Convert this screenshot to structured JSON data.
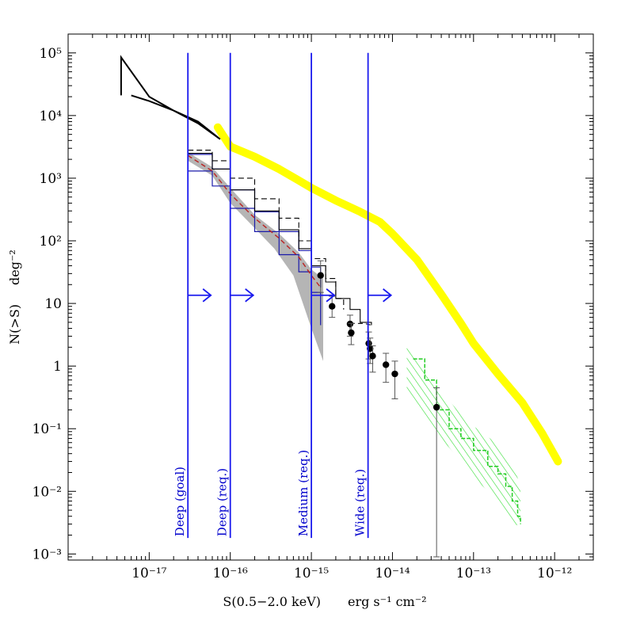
{
  "chart_data": {
    "type": "line",
    "xlabel": {
      "main": "S(0.5−2.0 keV)",
      "units": "erg s⁻¹ cm⁻²"
    },
    "ylabel": {
      "main": "N(>S)",
      "units": "deg⁻²"
    },
    "x_scale": "log",
    "y_scale": "log",
    "xlim": [
      1e-18,
      3e-12
    ],
    "ylim": [
      0.0008,
      200000
    ],
    "grid": false,
    "x_ticks": [
      {
        "value": 1e-17,
        "label": "10⁻¹⁷"
      },
      {
        "value": 1e-16,
        "label": "10⁻¹⁶"
      },
      {
        "value": 1e-15,
        "label": "10⁻¹⁵"
      },
      {
        "value": 1e-14,
        "label": "10⁻¹⁴"
      },
      {
        "value": 1e-13,
        "label": "10⁻¹³"
      },
      {
        "value": 1e-12,
        "label": "10⁻¹²"
      }
    ],
    "y_ticks": [
      {
        "value": 100000,
        "label": "10⁵"
      },
      {
        "value": 10000,
        "label": "10⁴"
      },
      {
        "value": 1000,
        "label": "10³"
      },
      {
        "value": 100,
        "label": "10²"
      },
      {
        "value": 10,
        "label": "10"
      },
      {
        "value": 1,
        "label": "1"
      },
      {
        "value": 0.1,
        "label": "10⁻¹"
      },
      {
        "value": 0.01,
        "label": "10⁻²"
      },
      {
        "value": 0.001,
        "label": "10⁻³"
      }
    ],
    "survey_limits": [
      {
        "label": "Deep (goal)",
        "x": 3e-17
      },
      {
        "label": "Deep (req.)",
        "x": 1e-16
      },
      {
        "label": "Medium (req.)",
        "x": 1e-15
      },
      {
        "label": "Wide (req.)",
        "x": 5e-15
      }
    ],
    "series": [
      {
        "style": "yellow-band",
        "x": [
          7e-17,
          1e-16,
          2e-16,
          4e-16,
          7e-16,
          1e-15,
          2e-15,
          4e-15,
          7e-15,
          1e-14,
          2e-14,
          4e-14,
          7e-14,
          1e-13,
          2e-13,
          4e-13,
          7e-13,
          1.1e-12
        ],
        "y": [
          6500,
          3200,
          2200,
          1400,
          920,
          700,
          440,
          290,
          200,
          130,
          50,
          14,
          4.8,
          2.3,
          0.75,
          0.26,
          0.085,
          0.03
        ]
      },
      {
        "style": "black-wedge-upper",
        "x": [
          4.5e-18,
          1e-17,
          2e-17,
          4e-17,
          7.5e-17
        ],
        "y": [
          85000,
          20000,
          12000,
          7500,
          4200
        ]
      },
      {
        "style": "black-wedge-lower",
        "x": [
          4.5e-18,
          6e-18,
          1e-17,
          2e-17,
          4e-17,
          7.5e-17
        ],
        "y": [
          21000,
          21000,
          17000,
          12000,
          8000,
          4200
        ]
      },
      {
        "style": "gray-band-upper",
        "x": [
          3e-17,
          6e-17,
          1e-16,
          2e-16,
          4e-16,
          7e-16,
          1e-15,
          1.4e-15
        ],
        "y": [
          2600,
          1500,
          700,
          260,
          130,
          65,
          35,
          25
        ]
      },
      {
        "style": "gray-band-lower",
        "x": [
          3e-17,
          6e-17,
          1e-16,
          2e-16,
          3.5e-16,
          6e-16,
          1e-15,
          1.4e-15
        ],
        "y": [
          1900,
          1100,
          400,
          160,
          75,
          28,
          4,
          1.2
        ]
      },
      {
        "style": "black-step",
        "x": [
          3e-17,
          6e-17,
          1e-16,
          2e-16,
          4e-16,
          7e-16,
          1e-15,
          1.5e-15,
          2e-15,
          3e-15,
          4e-15,
          5.5e-15
        ],
        "y": [
          2500,
          1400,
          650,
          300,
          150,
          75,
          40,
          22,
          12,
          8,
          5,
          4.5
        ]
      },
      {
        "style": "black-dashed-step",
        "x": [
          3e-17,
          6e-17,
          1e-16,
          2e-16,
          4e-16,
          7e-16,
          1e-15,
          1.5e-15,
          2e-15,
          2.5e-15
        ],
        "y": [
          2800,
          1900,
          1000,
          470,
          230,
          100,
          52,
          25,
          12,
          8
        ]
      },
      {
        "style": "red-dashed",
        "x": [
          3e-17,
          6e-17,
          1e-16,
          2e-16,
          4e-16,
          7e-16,
          1e-15,
          1.3e-15
        ],
        "y": [
          2300,
          1300,
          560,
          230,
          110,
          55,
          28,
          18
        ]
      },
      {
        "style": "blue-step-upper",
        "x": [
          3e-17,
          6e-17,
          1e-16,
          2e-16,
          4e-16,
          7e-16,
          1e-15,
          1.3e-15
        ],
        "y": [
          2400,
          1400,
          650,
          290,
          140,
          70,
          38,
          18
        ]
      },
      {
        "style": "blue-step-lower",
        "x": [
          3e-17,
          6e-17,
          1e-16,
          2e-16,
          4e-16,
          7e-16,
          1e-15,
          1.3e-15
        ],
        "y": [
          1300,
          750,
          330,
          140,
          60,
          32,
          15,
          4.5
        ]
      },
      {
        "style": "black-dashed-short",
        "x": [
          3e-15,
          4.5e-15,
          5.5e-15
        ],
        "y": [
          4.8,
          4.8,
          4.5
        ]
      },
      {
        "style": "green-step",
        "x": [
          1.8e-14,
          2.5e-14,
          3.5e-14,
          5e-14,
          7e-14,
          1e-13,
          1.5e-13,
          2e-13,
          2.5e-13,
          3e-13,
          3.5e-13,
          3.8e-13
        ],
        "y": [
          1.3,
          0.6,
          0.2,
          0.1,
          0.07,
          0.045,
          0.025,
          0.019,
          0.012,
          0.007,
          0.004,
          0.003
        ]
      },
      {
        "style": "green-hatch-upper",
        "x": [
          1.5e-14,
          2e-14,
          3e-14,
          5e-14,
          7e-14,
          1e-13,
          1.5e-13,
          2e-13,
          3e-13,
          3.8e-13
        ],
        "y": [
          2.0,
          1.2,
          0.55,
          0.28,
          0.17,
          0.11,
          0.075,
          0.055,
          0.03,
          0.012
        ]
      },
      {
        "style": "green-hatch-lower",
        "x": [
          1.5e-14,
          2e-14,
          3e-14,
          5e-14,
          7e-14,
          1e-13,
          1.5e-13,
          2e-13,
          3e-13,
          3.8e-13
        ],
        "y": [
          0.45,
          0.25,
          0.1,
          0.05,
          0.03,
          0.017,
          0.01,
          0.006,
          0.003,
          0.0028
        ]
      }
    ],
    "points": [
      {
        "x": 1.3e-15,
        "y": 28,
        "ylo": 15,
        "yhi": 48
      },
      {
        "x": 1.8e-15,
        "y": 9,
        "ylo": 6,
        "yhi": 13
      },
      {
        "x": 3e-15,
        "y": 4.7,
        "ylo": 3,
        "yhi": 6.5
      },
      {
        "x": 3.1e-15,
        "y": 3.4,
        "ylo": 2.2,
        "yhi": 4.8
      },
      {
        "x": 5.1e-15,
        "y": 2.3,
        "ylo": 1.3,
        "yhi": 3.5
      },
      {
        "x": 5.3e-15,
        "y": 1.9,
        "ylo": 1.1,
        "yhi": 2.8
      },
      {
        "x": 5.7e-15,
        "y": 1.45,
        "ylo": 0.8,
        "yhi": 2.1
      },
      {
        "x": 8.3e-15,
        "y": 1.05,
        "ylo": 0.55,
        "yhi": 1.6
      },
      {
        "x": 1.07e-14,
        "y": 0.75,
        "ylo": 0.3,
        "yhi": 1.2
      },
      {
        "x": 3.5e-14,
        "y": 0.22,
        "ylo": 0.0009,
        "yhi": 0.45
      }
    ]
  }
}
